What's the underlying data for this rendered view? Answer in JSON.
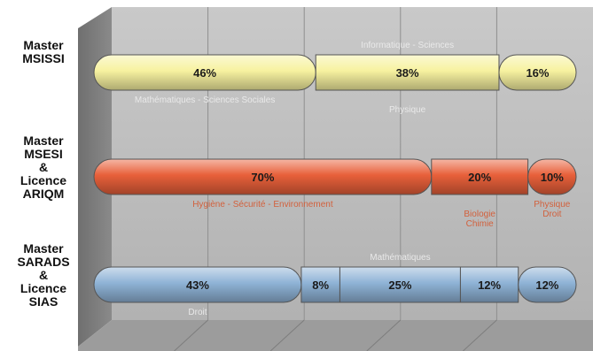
{
  "chart_data": {
    "type": "bar",
    "orientation": "horizontal",
    "stacked": true,
    "percent": true,
    "grid": true,
    "xlim": [
      0,
      100
    ],
    "categories": [
      {
        "label_lines": [
          "Master",
          "MSISSI"
        ],
        "color": "#f7f2a0",
        "segments": [
          {
            "value": 46,
            "label": "46%"
          },
          {
            "value": 38,
            "label": "38%"
          },
          {
            "value": 16,
            "label": "16%"
          }
        ],
        "annotations": [
          {
            "text": "Informatique - Sciences",
            "position": "above"
          },
          {
            "text": "Mathématiques - Sciences Sociales",
            "position": "below"
          },
          {
            "text": "Physique",
            "position": "below"
          }
        ]
      },
      {
        "label_lines": [
          "Master",
          "MSESI",
          "&",
          "Licence",
          "ARIQM"
        ],
        "color": "#e8603a",
        "segments": [
          {
            "value": 70,
            "label": "70%"
          },
          {
            "value": 20,
            "label": "20%"
          },
          {
            "value": 10,
            "label": "10%"
          }
        ],
        "annotations": [
          {
            "text": "Hygiène - Sécurité - Environnement",
            "position": "below"
          },
          {
            "text": "Biologie",
            "position": "below"
          },
          {
            "text": "Chimie",
            "position": "below"
          },
          {
            "text": "Physique",
            "position": "below"
          },
          {
            "text": "Droit",
            "position": "below"
          }
        ]
      },
      {
        "label_lines": [
          "Master",
          "SARADS",
          "&",
          "Licence",
          "SIAS"
        ],
        "color": "#8fb3d6",
        "segments": [
          {
            "value": 43,
            "label": "43%"
          },
          {
            "value": 8,
            "label": "8%"
          },
          {
            "value": 25,
            "label": "25%"
          },
          {
            "value": 12,
            "label": "12%"
          },
          {
            "value": 12,
            "label": "12%"
          }
        ],
        "annotations": [
          {
            "text": "Mathématiques",
            "position": "above"
          },
          {
            "text": "Droit",
            "position": "below"
          }
        ]
      }
    ]
  }
}
